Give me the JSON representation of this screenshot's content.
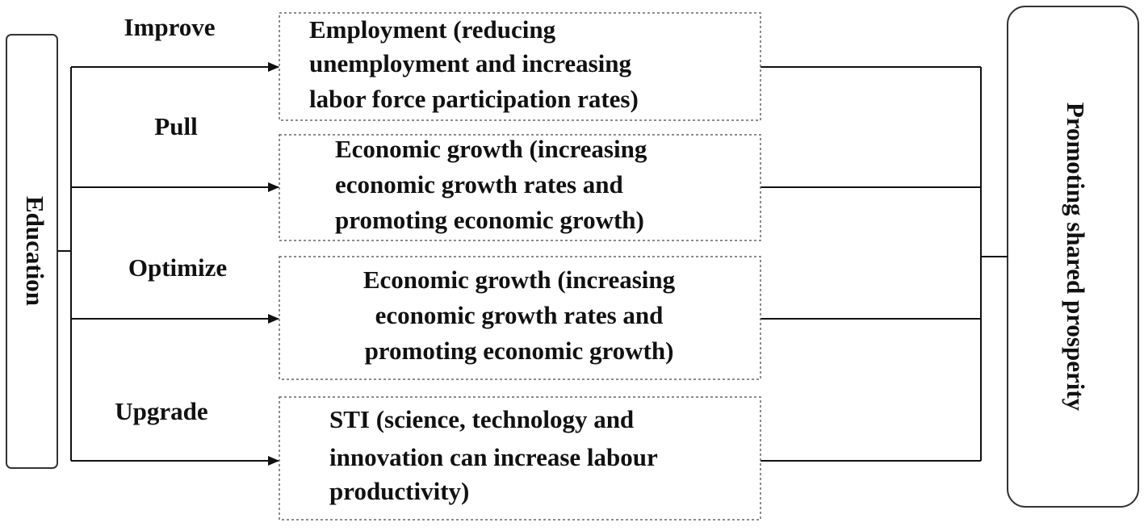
{
  "source": {
    "label": "Education"
  },
  "target": {
    "label": "Promoting shared prosperity"
  },
  "edges": [
    {
      "label": "Improve"
    },
    {
      "label": "Pull"
    },
    {
      "label": "Optimize"
    },
    {
      "label": "Upgrade"
    }
  ],
  "nodes": [
    {
      "lines": [
        "Employment (reducing",
        "unemployment and increasing",
        "labor force participation rates)"
      ]
    },
    {
      "lines": [
        "Economic growth (increasing",
        "economic growth rates and",
        "promoting economic growth)"
      ]
    },
    {
      "lines": [
        "Economic growth (increasing",
        "economic growth rates and",
        "promoting economic growth)"
      ]
    },
    {
      "lines": [
        "STI (science, technology and",
        "innovation can increase labour",
        "productivity)"
      ]
    }
  ]
}
